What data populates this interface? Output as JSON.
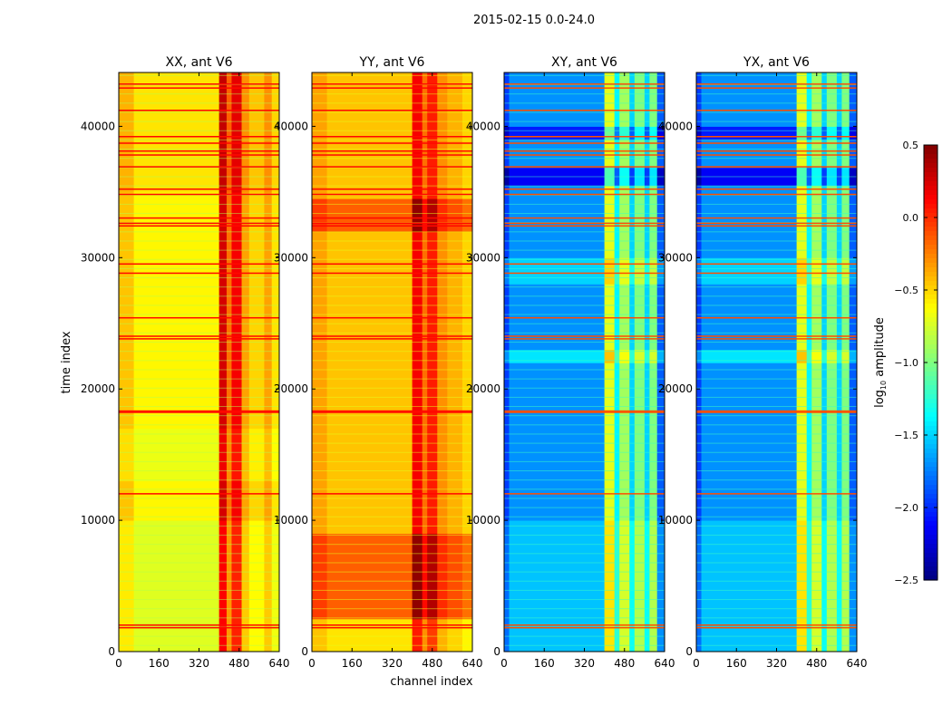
{
  "chart_data": {
    "type": "heatmap",
    "title": "2015-02-15 0.0-24.0",
    "xlabel": "channel index",
    "ylabel": "time index",
    "xlim": [
      0,
      640
    ],
    "ylim": [
      0,
      44100
    ],
    "xticks": [
      0,
      160,
      320,
      480,
      640
    ],
    "yticks": [
      0,
      10000,
      20000,
      30000,
      40000
    ],
    "colorbar": {
      "label": "log10 amplitude",
      "label_main": "log",
      "label_sub": "10",
      "label_rest": " amplitude",
      "colormap": "jet",
      "range": [
        -2.5,
        0.5
      ],
      "ticks": [
        0.5,
        0.0,
        -0.5,
        -1.0,
        -1.5,
        -2.0,
        -2.5
      ],
      "tick_labels": [
        "0.5",
        "0.0",
        "−0.5",
        "−1.0",
        "−1.5",
        "−2.0",
        "−2.5"
      ]
    },
    "flag_rows": [
      43200,
      42900,
      41200,
      39200,
      38700,
      38100,
      37800,
      36900,
      35200,
      34800,
      33000,
      32600,
      32400,
      29500,
      28800,
      25400,
      24000,
      23800,
      18300,
      18200,
      12000,
      2000,
      1800
    ],
    "panels": [
      {
        "title": "XX, ant V6",
        "flag_value": 0.1,
        "columns": [
          [
            0,
            60,
            -0.45
          ],
          [
            60,
            400,
            -0.6
          ],
          [
            400,
            430,
            0.25
          ],
          [
            430,
            450,
            -0.2
          ],
          [
            450,
            490,
            0.15
          ],
          [
            490,
            520,
            -0.35
          ],
          [
            520,
            580,
            -0.5
          ],
          [
            580,
            610,
            -0.35
          ],
          [
            610,
            640,
            -0.55
          ]
        ],
        "time_offsets": [
          [
            0,
            10000,
            -0.12
          ],
          [
            13000,
            17000,
            -0.08
          ],
          [
            35000,
            44100,
            0.05
          ]
        ]
      },
      {
        "title": "YY, ant V6",
        "flag_value": 0.1,
        "columns": [
          [
            0,
            60,
            -0.35
          ],
          [
            60,
            400,
            -0.45
          ],
          [
            400,
            440,
            0.15
          ],
          [
            440,
            460,
            -0.2
          ],
          [
            460,
            500,
            0.05
          ],
          [
            500,
            540,
            -0.3
          ],
          [
            540,
            600,
            -0.4
          ],
          [
            600,
            640,
            -0.5
          ]
        ],
        "time_offsets": [
          [
            2500,
            9000,
            0.3
          ],
          [
            32000,
            34500,
            0.3
          ],
          [
            0,
            2500,
            -0.1
          ]
        ]
      },
      {
        "title": "XY, ant V6",
        "flag_value": -0.1,
        "columns": [
          [
            0,
            20,
            -1.95
          ],
          [
            20,
            400,
            -1.7
          ],
          [
            400,
            440,
            -0.7
          ],
          [
            440,
            460,
            -1.4
          ],
          [
            460,
            500,
            -0.9
          ],
          [
            500,
            520,
            -1.5
          ],
          [
            520,
            560,
            -1.0
          ],
          [
            560,
            580,
            -1.5
          ],
          [
            580,
            610,
            -1.0
          ],
          [
            610,
            640,
            -1.85
          ]
        ],
        "time_offsets": [
          [
            35500,
            37000,
            -0.45
          ],
          [
            39000,
            40000,
            -0.35
          ],
          [
            28000,
            30000,
            0.2
          ],
          [
            22000,
            23000,
            0.25
          ],
          [
            0,
            10000,
            0.15
          ]
        ]
      },
      {
        "title": "YX, ant V6",
        "flag_value": -0.1,
        "columns": [
          [
            0,
            20,
            -1.95
          ],
          [
            20,
            400,
            -1.7
          ],
          [
            400,
            440,
            -0.7
          ],
          [
            440,
            460,
            -1.4
          ],
          [
            460,
            500,
            -0.9
          ],
          [
            500,
            520,
            -1.5
          ],
          [
            520,
            560,
            -1.0
          ],
          [
            560,
            580,
            -1.5
          ],
          [
            580,
            610,
            -1.0
          ],
          [
            610,
            640,
            -1.85
          ]
        ],
        "time_offsets": [
          [
            35500,
            37000,
            -0.45
          ],
          [
            39000,
            40000,
            -0.35
          ],
          [
            28000,
            30000,
            0.2
          ],
          [
            22000,
            23000,
            0.25
          ],
          [
            0,
            10000,
            0.15
          ]
        ]
      }
    ]
  }
}
